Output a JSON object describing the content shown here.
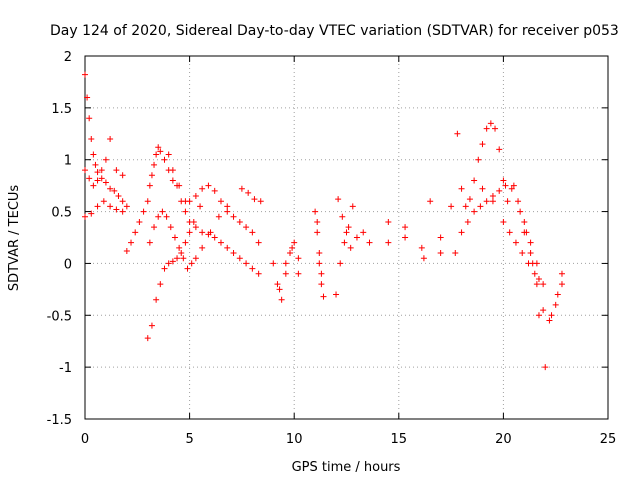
{
  "chart_data": {
    "type": "scatter",
    "title": "Day 124 of 2020, Sidereal Day-to-day VTEC variation (SDTVAR) for receiver p053",
    "xlabel": "GPS time / hours",
    "ylabel": "SDTVAR / TECUs",
    "xlim": [
      0,
      25
    ],
    "ylim": [
      -1.5,
      2
    ],
    "xticks": [
      "0",
      "5",
      "10",
      "15",
      "20",
      "25"
    ],
    "yticks": [
      "-1.5",
      "-1",
      "-0.5",
      "0",
      "0.5",
      "1",
      "1.5",
      "2"
    ],
    "xtick_values": [
      0,
      5,
      10,
      15,
      20,
      25
    ],
    "ytick_values": [
      -1.5,
      -1,
      -0.5,
      0,
      0.5,
      1,
      1.5,
      2
    ],
    "grid": true,
    "marker": "+",
    "color": "#ff0000",
    "series": [
      {
        "name": "SDTVAR",
        "x": [
          0.0,
          0.1,
          0.2,
          0.3,
          0.4,
          0.5,
          0.6,
          0.8,
          1.0,
          1.2,
          1.4,
          1.6,
          1.8,
          2.0,
          0.0,
          0.2,
          0.4,
          0.6,
          0.8,
          1.0,
          1.2,
          1.5,
          1.8,
          0.0,
          0.3,
          0.6,
          0.9,
          1.2,
          1.5,
          1.8,
          2.0,
          2.2,
          2.4,
          2.6,
          2.8,
          3.0,
          3.1,
          3.2,
          3.3,
          3.4,
          3.5,
          3.6,
          3.8,
          4.0,
          4.2,
          4.5,
          4.8,
          3.0,
          3.2,
          3.4,
          3.6,
          3.8,
          4.0,
          4.2,
          4.4,
          4.6,
          4.8,
          5.0,
          5.2,
          5.5,
          3.1,
          3.3,
          3.5,
          3.7,
          3.9,
          4.1,
          4.3,
          4.5,
          4.7,
          4.9,
          5.1,
          5.3,
          5.6,
          6.0,
          6.4,
          6.8,
          4.0,
          4.2,
          4.4,
          4.6,
          4.8,
          5.0,
          5.3,
          5.6,
          5.9,
          6.2,
          6.5,
          6.8,
          7.1,
          7.4,
          7.7,
          8.0,
          8.3,
          5.0,
          5.3,
          5.6,
          5.9,
          6.2,
          6.5,
          6.8,
          7.1,
          7.4,
          7.7,
          8.0,
          8.3,
          7.5,
          7.8,
          8.1,
          8.4,
          9.0,
          9.2,
          9.4,
          9.6,
          9.8,
          10.0,
          10.2,
          9.3,
          9.6,
          9.9,
          10.2,
          11.0,
          11.1,
          11.2,
          11.3,
          11.4,
          11.1,
          11.2,
          11.3,
          12.0,
          12.2,
          12.4,
          12.6,
          12.8,
          12.1,
          12.3,
          12.5,
          12.7,
          13.0,
          13.3,
          13.6,
          14.5,
          14.5,
          15.3,
          15.3,
          16.1,
          16.2,
          16.5,
          17.0,
          17.0,
          17.5,
          17.7,
          17.8,
          18.0,
          18.2,
          18.4,
          18.6,
          18.8,
          19.0,
          19.2,
          19.4,
          19.6,
          19.8,
          20.0,
          20.2,
          18.0,
          18.3,
          18.6,
          18.9,
          19.2,
          19.5,
          19.8,
          20.1,
          20.4,
          20.7,
          21.0,
          21.3,
          21.6,
          19.0,
          19.5,
          20.0,
          20.3,
          20.6,
          20.9,
          21.2,
          21.5,
          21.7,
          21.9,
          20.5,
          20.8,
          21.1,
          21.4,
          21.7,
          22.0,
          22.3,
          22.6,
          22.8,
          21.0,
          21.3,
          21.6,
          21.9,
          22.2,
          22.5,
          22.8
        ],
        "y": [
          1.82,
          1.6,
          1.4,
          1.2,
          1.05,
          0.95,
          0.88,
          0.82,
          0.78,
          0.72,
          0.7,
          0.65,
          0.6,
          0.55,
          0.9,
          0.82,
          0.75,
          0.8,
          0.9,
          1.0,
          1.2,
          0.9,
          0.85,
          0.45,
          0.48,
          0.55,
          0.6,
          0.55,
          0.52,
          0.5,
          0.12,
          0.2,
          0.3,
          0.4,
          0.5,
          0.6,
          0.75,
          0.85,
          0.95,
          1.05,
          1.12,
          1.08,
          1.0,
          0.9,
          0.8,
          0.75,
          0.6,
          -0.72,
          -0.6,
          -0.35,
          -0.2,
          -0.05,
          0.0,
          0.02,
          0.05,
          0.1,
          0.2,
          0.3,
          0.4,
          0.55,
          0.2,
          0.35,
          0.45,
          0.5,
          0.45,
          0.35,
          0.25,
          0.15,
          0.05,
          -0.05,
          0.0,
          0.05,
          0.15,
          0.3,
          0.45,
          0.55,
          1.05,
          0.9,
          0.75,
          0.6,
          0.5,
          0.4,
          0.35,
          0.3,
          0.28,
          0.25,
          0.2,
          0.15,
          0.1,
          0.05,
          0.0,
          -0.05,
          -0.1,
          0.6,
          0.65,
          0.72,
          0.75,
          0.7,
          0.6,
          0.5,
          0.45,
          0.4,
          0.35,
          0.3,
          0.2,
          0.72,
          0.68,
          0.62,
          0.6,
          0.0,
          -0.2,
          -0.35,
          -0.1,
          0.1,
          0.2,
          0.05,
          -0.25,
          0.0,
          0.15,
          -0.1,
          0.5,
          0.3,
          0.0,
          -0.2,
          -0.32,
          0.4,
          0.1,
          -0.1,
          -0.3,
          0.0,
          0.2,
          0.35,
          0.55,
          0.62,
          0.45,
          0.3,
          0.15,
          0.25,
          0.3,
          0.2,
          0.4,
          0.2,
          0.35,
          0.25,
          0.15,
          0.05,
          0.6,
          0.1,
          0.25,
          0.55,
          0.1,
          1.25,
          0.72,
          0.55,
          0.62,
          0.8,
          1.0,
          1.15,
          1.3,
          1.35,
          1.3,
          1.1,
          0.8,
          0.6,
          0.3,
          0.4,
          0.5,
          0.55,
          0.6,
          0.65,
          0.7,
          0.75,
          0.72,
          0.6,
          0.4,
          0.2,
          0.0,
          0.72,
          0.6,
          0.4,
          0.3,
          0.2,
          0.1,
          0.0,
          -0.1,
          -0.15,
          -0.2,
          0.75,
          0.5,
          0.3,
          0.0,
          -0.5,
          -1.0,
          -0.5,
          -0.3,
          -0.1,
          0.3,
          0.1,
          -0.2,
          -0.45,
          -0.55,
          -0.4,
          -0.2
        ]
      }
    ]
  }
}
